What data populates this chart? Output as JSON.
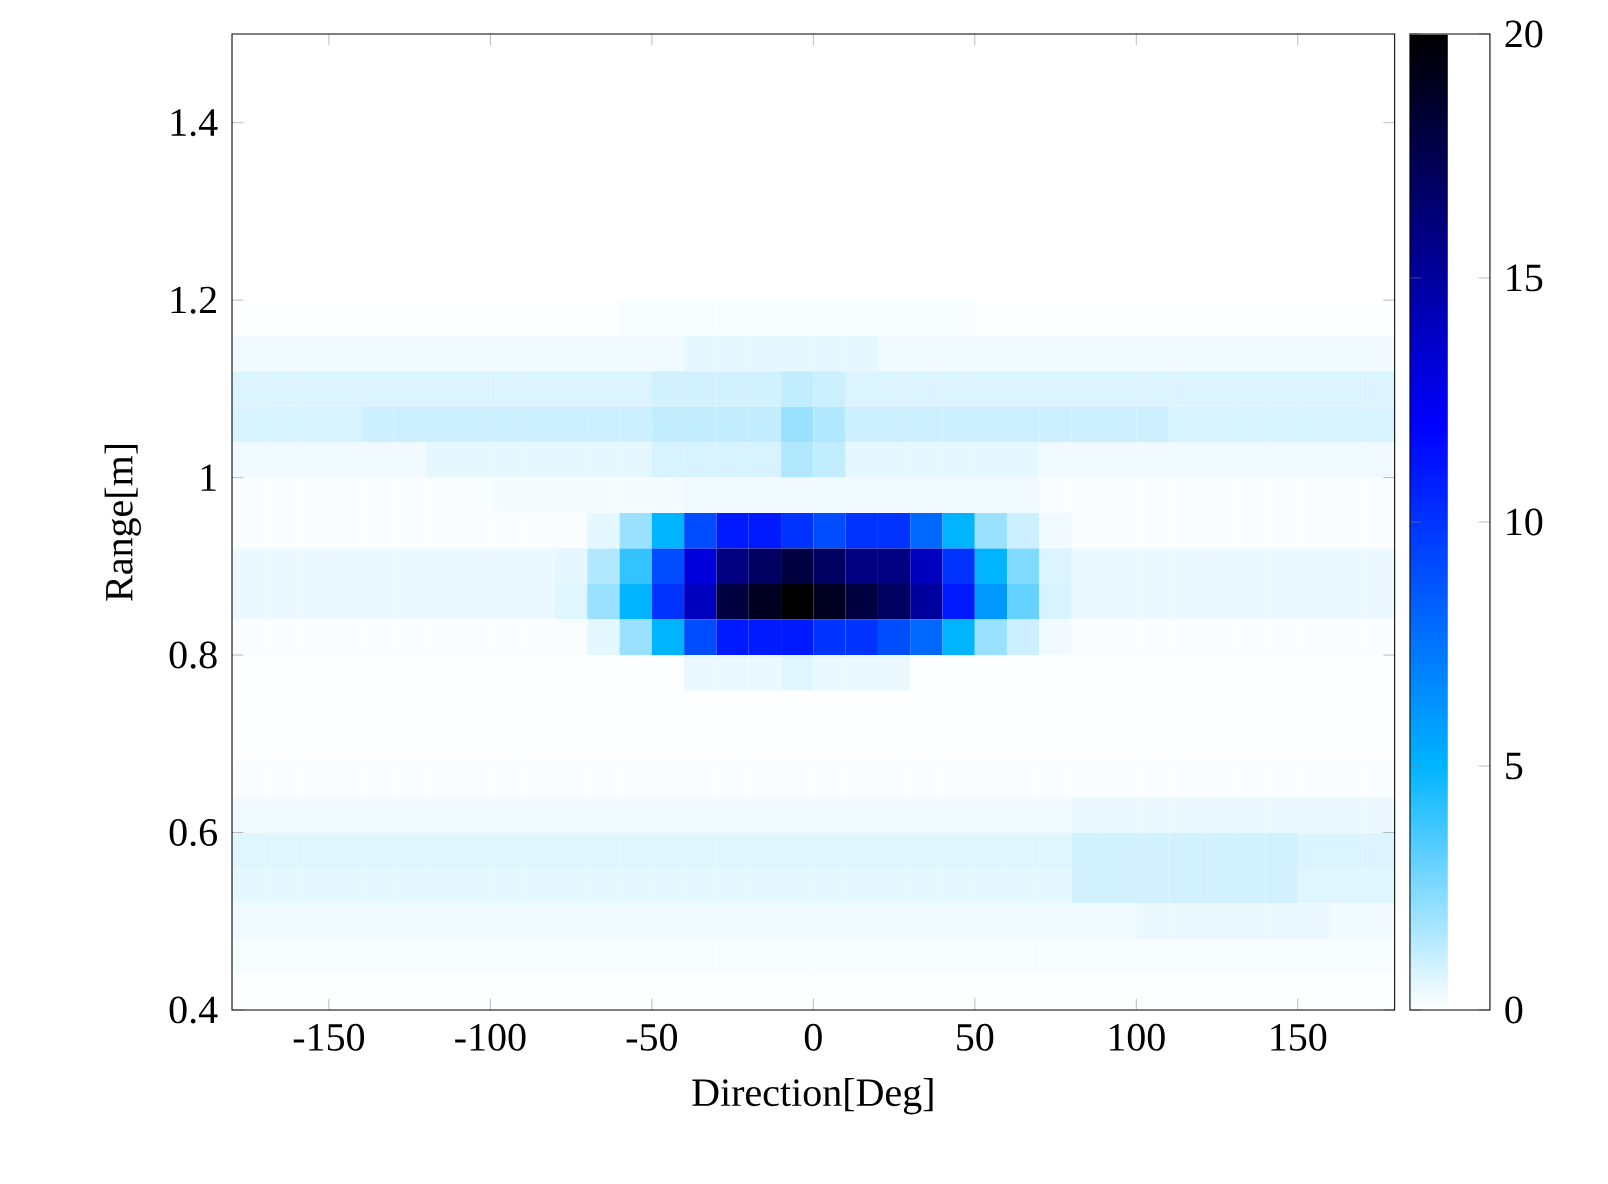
{
  "chart_data": {
    "type": "heatmap",
    "xlabel": "Direction[Deg]",
    "ylabel": "Range[m]",
    "x": [
      -175,
      -165,
      -155,
      -145,
      -135,
      -125,
      -115,
      -105,
      -95,
      -85,
      -75,
      -65,
      -55,
      -45,
      -35,
      -25,
      -15,
      -5,
      5,
      15,
      25,
      35,
      45,
      55,
      65,
      75,
      85,
      95,
      105,
      115,
      125,
      135,
      145,
      155,
      165,
      175
    ],
    "y": [
      1.46,
      1.42,
      1.38,
      1.34,
      1.3,
      1.26,
      1.22,
      1.18,
      1.14,
      1.1,
      1.06,
      1.02,
      0.98,
      0.94,
      0.9,
      0.86,
      0.82,
      0.78,
      0.74,
      0.7,
      0.66,
      0.62,
      0.58,
      0.54,
      0.5,
      0.46,
      0.42
    ],
    "cells": [
      [
        0,
        0,
        0,
        0,
        0,
        0,
        0,
        0,
        0,
        0,
        0,
        0,
        0,
        0,
        0,
        0,
        0,
        0,
        0,
        0,
        0,
        0,
        0,
        0,
        0,
        0,
        0,
        0,
        0,
        0,
        0,
        0,
        0,
        0,
        0,
        0
      ],
      [
        0,
        0,
        0,
        0,
        0,
        0,
        0,
        0,
        0,
        0,
        0,
        0,
        0,
        0,
        0,
        0,
        0,
        0,
        0,
        0,
        0,
        0,
        0,
        0,
        0,
        0,
        0,
        0,
        0,
        0,
        0,
        0,
        0,
        0,
        0,
        0
      ],
      [
        0,
        0,
        0,
        0,
        0,
        0,
        0,
        0,
        0,
        0,
        0,
        0,
        0,
        0,
        0,
        0,
        0,
        0,
        0,
        0,
        0,
        0,
        0,
        0,
        0,
        0,
        0,
        0,
        0,
        0,
        0,
        0,
        0,
        0,
        0,
        0
      ],
      [
        0,
        0,
        0,
        0,
        0,
        0,
        0,
        0,
        0,
        0,
        0,
        0,
        0,
        0,
        0,
        0,
        0,
        0,
        0,
        0,
        0,
        0,
        0,
        0,
        0,
        0,
        0,
        0,
        0,
        0,
        0,
        0,
        0,
        0,
        0,
        0
      ],
      [
        0,
        0,
        0,
        0,
        0,
        0,
        0,
        0,
        0,
        0,
        0,
        0,
        0,
        0,
        0,
        0,
        0,
        0,
        0,
        0,
        0,
        0,
        0,
        0,
        0,
        0,
        0,
        0,
        0,
        0,
        0,
        0,
        0,
        0,
        0,
        0
      ],
      [
        0,
        0,
        0,
        0,
        0,
        0,
        0,
        0,
        0,
        0,
        0,
        0,
        0,
        0,
        0,
        0,
        0,
        0,
        0,
        0,
        0,
        0,
        0,
        0,
        0,
        0,
        0,
        0,
        0,
        0,
        0,
        0,
        0,
        0,
        0,
        0
      ],
      [
        0,
        0,
        0,
        0,
        0,
        0,
        0,
        0,
        0,
        0,
        0,
        0,
        0,
        0,
        0,
        0,
        0,
        0,
        0,
        0,
        0,
        0,
        0,
        0,
        0,
        0,
        0,
        0,
        0,
        0,
        0,
        0,
        0,
        0,
        0,
        0
      ],
      [
        0.05,
        0.05,
        0.05,
        0.05,
        0.05,
        0.05,
        0.05,
        0.05,
        0.05,
        0.05,
        0.05,
        0.05,
        0.15,
        0.15,
        0.15,
        0.15,
        0.15,
        0.15,
        0.15,
        0.15,
        0.15,
        0.15,
        0.15,
        0.05,
        0.05,
        0.05,
        0.05,
        0.05,
        0.05,
        0.05,
        0.05,
        0.05,
        0.05,
        0.05,
        0.05,
        0.05
      ],
      [
        0.3,
        0.3,
        0.3,
        0.3,
        0.3,
        0.3,
        0.3,
        0.3,
        0.3,
        0.3,
        0.3,
        0.3,
        0.3,
        0.3,
        0.5,
        0.5,
        0.5,
        0.5,
        0.5,
        0.5,
        0.3,
        0.3,
        0.3,
        0.3,
        0.3,
        0.3,
        0.3,
        0.3,
        0.3,
        0.3,
        0.3,
        0.3,
        0.3,
        0.3,
        0.3,
        0.3
      ],
      [
        0.7,
        0.7,
        0.7,
        0.7,
        0.7,
        0.7,
        0.7,
        0.7,
        0.7,
        0.7,
        0.7,
        0.7,
        0.7,
        0.9,
        0.9,
        0.9,
        0.9,
        1.2,
        1.0,
        0.7,
        0.7,
        0.7,
        0.7,
        0.7,
        0.7,
        0.7,
        0.7,
        0.7,
        0.7,
        0.7,
        0.7,
        0.7,
        0.7,
        0.7,
        0.7,
        0.7
      ],
      [
        0.8,
        0.8,
        0.8,
        0.8,
        1.0,
        1.0,
        1.0,
        1.0,
        1.0,
        1.0,
        1.0,
        1.0,
        1.0,
        1.2,
        1.2,
        1.2,
        1.2,
        2,
        1.5,
        1.0,
        1.0,
        1.0,
        1.0,
        1.0,
        1.0,
        1.0,
        1.0,
        1.0,
        1.0,
        0.8,
        0.8,
        0.8,
        0.8,
        0.8,
        0.8,
        0.8
      ],
      [
        0.3,
        0.3,
        0.3,
        0.3,
        0.3,
        0.3,
        0.5,
        0.5,
        0.5,
        0.5,
        0.5,
        0.5,
        0.5,
        0.8,
        0.8,
        0.8,
        0.8,
        1.5,
        1.2,
        0.5,
        0.5,
        0.5,
        0.5,
        0.5,
        0.5,
        0.3,
        0.3,
        0.3,
        0.3,
        0.3,
        0.3,
        0.3,
        0.3,
        0.3,
        0.3,
        0.3
      ],
      [
        0.1,
        0.1,
        0.1,
        0.1,
        0.1,
        0.1,
        0.1,
        0.1,
        0.2,
        0.2,
        0.2,
        0.2,
        0.2,
        0.2,
        0.3,
        0.3,
        0.3,
        0.3,
        0.3,
        0.3,
        0.3,
        0.3,
        0.3,
        0.3,
        0.3,
        0.1,
        0.1,
        0.1,
        0.1,
        0.1,
        0.1,
        0.1,
        0.1,
        0.1,
        0.1,
        0.1
      ],
      [
        0.1,
        0.1,
        0.1,
        0.1,
        0.1,
        0.1,
        0.1,
        0.1,
        0.1,
        0.1,
        0.1,
        0.5,
        2,
        5,
        9,
        11,
        11,
        10,
        9,
        10,
        10,
        8,
        5,
        2,
        1,
        0.3,
        0.1,
        0.1,
        0.1,
        0.1,
        0.1,
        0.1,
        0.1,
        0.1,
        0.1,
        0.1
      ],
      [
        0.4,
        0.4,
        0.4,
        0.4,
        0.4,
        0.4,
        0.4,
        0.4,
        0.4,
        0.4,
        0.5,
        1.5,
        4,
        9,
        13,
        16,
        17,
        18,
        17,
        16,
        16,
        14,
        10,
        5,
        2.5,
        0.7,
        0.4,
        0.4,
        0.4,
        0.4,
        0.4,
        0.4,
        0.4,
        0.4,
        0.4,
        0.4
      ],
      [
        0.4,
        0.4,
        0.4,
        0.4,
        0.4,
        0.4,
        0.4,
        0.4,
        0.4,
        0.4,
        0.6,
        2,
        5,
        10,
        14,
        18,
        19,
        20,
        19,
        18,
        17,
        15,
        11,
        6,
        3,
        0.8,
        0.4,
        0.4,
        0.4,
        0.4,
        0.4,
        0.4,
        0.4,
        0.4,
        0.4,
        0.4
      ],
      [
        0.1,
        0.1,
        0.1,
        0.1,
        0.1,
        0.1,
        0.1,
        0.1,
        0.1,
        0.1,
        0.1,
        0.5,
        2,
        5,
        9,
        11,
        11,
        11,
        10,
        10,
        9,
        8,
        5,
        2,
        1,
        0.3,
        0.1,
        0.1,
        0.1,
        0.1,
        0.1,
        0.1,
        0.1,
        0.1,
        0.1,
        0.1
      ],
      [
        0.05,
        0.05,
        0.05,
        0.05,
        0.05,
        0.05,
        0.05,
        0.05,
        0.05,
        0.05,
        0.05,
        0.05,
        0.05,
        0.05,
        0.4,
        0.4,
        0.4,
        0.6,
        0.4,
        0.4,
        0.4,
        0.05,
        0.05,
        0.05,
        0.05,
        0.05,
        0.05,
        0.05,
        0.05,
        0.05,
        0.05,
        0.05,
        0.05,
        0.05,
        0.05,
        0.05
      ],
      [
        0.05,
        0.05,
        0.05,
        0.05,
        0.05,
        0.05,
        0.05,
        0.05,
        0.05,
        0.05,
        0.05,
        0.05,
        0.05,
        0.05,
        0.05,
        0.05,
        0.05,
        0.05,
        0.05,
        0.05,
        0.05,
        0.05,
        0.05,
        0.05,
        0.05,
        0.05,
        0.05,
        0.05,
        0.05,
        0.05,
        0.05,
        0.05,
        0.05,
        0.05,
        0.05,
        0.05
      ],
      [
        0.05,
        0.05,
        0.05,
        0.05,
        0.05,
        0.05,
        0.05,
        0.05,
        0.05,
        0.05,
        0.05,
        0.05,
        0.05,
        0.05,
        0.05,
        0.05,
        0.05,
        0.05,
        0.05,
        0.05,
        0.05,
        0.05,
        0.05,
        0.05,
        0.05,
        0.05,
        0.05,
        0.05,
        0.05,
        0.05,
        0.05,
        0.05,
        0.05,
        0.05,
        0.05,
        0.05
      ],
      [
        0.1,
        0.1,
        0.1,
        0.1,
        0.1,
        0.1,
        0.1,
        0.1,
        0.1,
        0.1,
        0.1,
        0.1,
        0.1,
        0.1,
        0.1,
        0.1,
        0.1,
        0.1,
        0.1,
        0.1,
        0.1,
        0.1,
        0.1,
        0.1,
        0.1,
        0.1,
        0.1,
        0.1,
        0.1,
        0.1,
        0.1,
        0.1,
        0.1,
        0.1,
        0.1,
        0.1
      ],
      [
        0.3,
        0.3,
        0.3,
        0.3,
        0.3,
        0.3,
        0.3,
        0.3,
        0.3,
        0.3,
        0.3,
        0.3,
        0.3,
        0.3,
        0.3,
        0.3,
        0.3,
        0.3,
        0.3,
        0.3,
        0.3,
        0.3,
        0.3,
        0.3,
        0.3,
        0.3,
        0.4,
        0.4,
        0.4,
        0.4,
        0.4,
        0.4,
        0.4,
        0.4,
        0.4,
        0.4
      ],
      [
        0.6,
        0.6,
        0.6,
        0.6,
        0.6,
        0.6,
        0.6,
        0.6,
        0.6,
        0.6,
        0.6,
        0.6,
        0.6,
        0.6,
        0.6,
        0.6,
        0.6,
        0.6,
        0.6,
        0.6,
        0.6,
        0.6,
        0.6,
        0.6,
        0.6,
        0.6,
        0.9,
        0.9,
        0.9,
        0.9,
        0.9,
        0.9,
        0.9,
        0.7,
        0.7,
        0.7
      ],
      [
        0.5,
        0.5,
        0.5,
        0.5,
        0.5,
        0.5,
        0.5,
        0.5,
        0.5,
        0.5,
        0.5,
        0.5,
        0.5,
        0.5,
        0.5,
        0.5,
        0.5,
        0.5,
        0.5,
        0.5,
        0.5,
        0.5,
        0.5,
        0.5,
        0.5,
        0.5,
        0.9,
        0.9,
        0.9,
        0.9,
        0.9,
        0.9,
        0.9,
        0.6,
        0.6,
        0.6
      ],
      [
        0.3,
        0.3,
        0.3,
        0.3,
        0.3,
        0.3,
        0.3,
        0.3,
        0.3,
        0.3,
        0.3,
        0.3,
        0.3,
        0.3,
        0.3,
        0.3,
        0.3,
        0.3,
        0.3,
        0.3,
        0.3,
        0.3,
        0.3,
        0.3,
        0.3,
        0.3,
        0.3,
        0.3,
        0.4,
        0.4,
        0.4,
        0.4,
        0.4,
        0.4,
        0.3,
        0.3
      ],
      [
        0.15,
        0.15,
        0.15,
        0.15,
        0.15,
        0.15,
        0.15,
        0.15,
        0.15,
        0.15,
        0.15,
        0.15,
        0.15,
        0.15,
        0.15,
        0.15,
        0.15,
        0.15,
        0.15,
        0.15,
        0.15,
        0.15,
        0.15,
        0.15,
        0.15,
        0.15,
        0.15,
        0.15,
        0.15,
        0.15,
        0.15,
        0.15,
        0.15,
        0.15,
        0.15,
        0.15
      ],
      [
        0.05,
        0.05,
        0.05,
        0.05,
        0.05,
        0.05,
        0.05,
        0.05,
        0.05,
        0.05,
        0.05,
        0.05,
        0.05,
        0.05,
        0.05,
        0.05,
        0.05,
        0.05,
        0.05,
        0.05,
        0.05,
        0.05,
        0.05,
        0.05,
        0.05,
        0.05,
        0.05,
        0.05,
        0.05,
        0.05,
        0.05,
        0.05,
        0.05,
        0.05,
        0.05,
        0.05
      ]
    ],
    "xlim": [
      -180,
      180
    ],
    "ylim": [
      0.4,
      1.5
    ],
    "xticks": [
      -150,
      -100,
      -50,
      0,
      50,
      100,
      150
    ],
    "yticks": [
      0.4,
      0.6,
      0.8,
      1,
      1.2,
      1.4
    ],
    "clim": [
      0,
      20
    ],
    "cticks": [
      0,
      5,
      10,
      15,
      20
    ]
  }
}
